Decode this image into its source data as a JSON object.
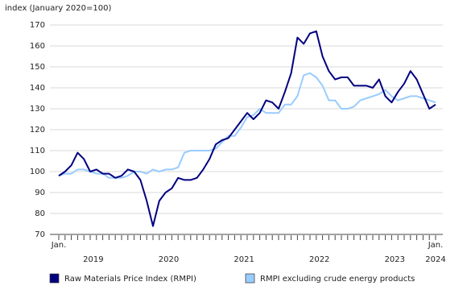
{
  "chart_data": {
    "type": "line",
    "y_axis_label": "index (January 2020=100)",
    "categories": [
      null,
      null,
      null,
      null,
      null,
      null,
      null,
      null,
      null,
      null,
      null,
      null,
      null,
      null,
      null,
      null,
      null,
      null,
      null,
      null,
      null,
      null,
      null,
      null,
      null,
      null,
      null,
      null,
      null,
      null,
      null,
      null,
      null,
      null,
      null,
      null,
      null,
      null,
      null,
      null,
      null,
      null,
      null,
      null,
      null,
      null,
      null,
      null,
      null,
      null,
      null,
      null,
      null,
      null,
      null,
      null,
      null,
      null,
      null,
      null,
      null
    ],
    "start_label": "Jan.",
    "year_labels": [
      "2019",
      "2020",
      "2021",
      "2022",
      "2023"
    ],
    "end_label": [
      "Jan.",
      "2024"
    ],
    "series": [
      {
        "name": "Raw Materials Price Index (RMPI)",
        "color": "#000080",
        "values": [
          98,
          100,
          103,
          109,
          106,
          100,
          101,
          99,
          99,
          97,
          98,
          101,
          100,
          96,
          86,
          74,
          86,
          90,
          92,
          97,
          96,
          96,
          97,
          101,
          106,
          113,
          115,
          116,
          120,
          124,
          128,
          125,
          128,
          134,
          133,
          130,
          138,
          147,
          164,
          161,
          166,
          167,
          155,
          148,
          144,
          145,
          145,
          141,
          141,
          141,
          140,
          144,
          136,
          133,
          138,
          142,
          148,
          144,
          137,
          130,
          132
        ]
      },
      {
        "name": "RMPI excluding crude energy products",
        "color": "#99ccff",
        "values": [
          98,
          99,
          99,
          101,
          101,
          100,
          99,
          99,
          97,
          97,
          97,
          98,
          100,
          100,
          99,
          101,
          100,
          101,
          101,
          102,
          109,
          110,
          110,
          110,
          110,
          111,
          114,
          117,
          117,
          121,
          126,
          127,
          130,
          128,
          128,
          128,
          132,
          132,
          136,
          146,
          147,
          145,
          141,
          134,
          134,
          130,
          130,
          131,
          134,
          135,
          136,
          137,
          139,
          136,
          134,
          135,
          136,
          136,
          135,
          134,
          133
        ]
      }
    ],
    "ylim": [
      70,
      170
    ],
    "yticks": [
      70,
      80,
      90,
      100,
      110,
      120,
      130,
      140,
      150,
      160,
      170
    ],
    "grid": true
  }
}
